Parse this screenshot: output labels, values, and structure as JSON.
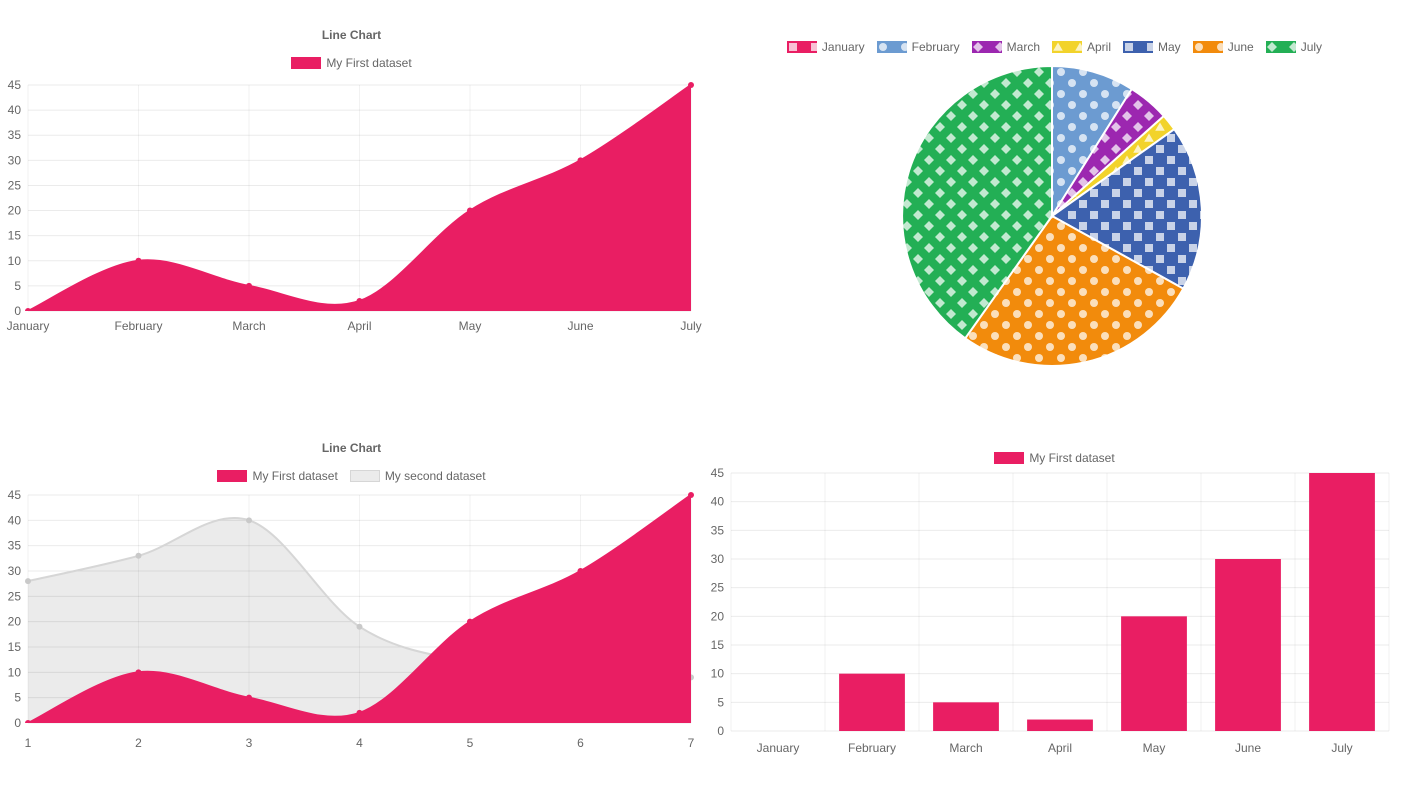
{
  "theme": {
    "background": "#ffffff",
    "text_color": "#666666",
    "grid_color_h": "rgba(0,0,0,0.08)",
    "grid_color_v": "rgba(0,0,0,0.05)",
    "accent_pink": "#E91E63"
  },
  "chart_data": [
    {
      "type": "line",
      "title": "Line Chart",
      "legend_position": "top",
      "grid": true,
      "categories": [
        "January",
        "February",
        "March",
        "April",
        "May",
        "June",
        "July"
      ],
      "series": [
        {
          "name": "My First dataset",
          "values": [
            0,
            10,
            5,
            2,
            20,
            30,
            45
          ],
          "color": "#E91E63",
          "fill_color": "#E91E63",
          "point_color": "#E91E63",
          "swatch": "#E91E63"
        }
      ],
      "ylim": [
        0,
        45
      ],
      "ytick_step": 5,
      "xlabel": "",
      "ylabel": ""
    },
    {
      "type": "pie",
      "legend_position": "top",
      "categories": [
        "January",
        "February",
        "March",
        "April",
        "May",
        "June",
        "July"
      ],
      "values": [
        0,
        10,
        5,
        2,
        20,
        30,
        45
      ],
      "colors": [
        "#E91E63",
        "#6C9BD1",
        "#9C27B0",
        "#F2D32B",
        "#3D61AE",
        "#F28B0C",
        "#23AF55"
      ],
      "patterns": [
        "square",
        "dot",
        "diamond",
        "triangle",
        "square",
        "dot",
        "diamond"
      ],
      "pattern_overlay": "rgba(255,255,255,0.72)"
    },
    {
      "type": "line",
      "title": "Line Chart",
      "legend_position": "top",
      "grid": true,
      "categories": [
        "1",
        "2",
        "3",
        "4",
        "5",
        "6",
        "7"
      ],
      "series": [
        {
          "name": "My First dataset",
          "values": [
            0,
            10,
            5,
            2,
            20,
            30,
            45
          ],
          "color": "#E91E63",
          "fill_color": "#E91E63",
          "point_color": "#E91E63",
          "swatch": "#E91E63"
        },
        {
          "name": "My second dataset",
          "values": [
            28,
            33,
            40,
            19,
            12,
            10,
            9
          ],
          "color": "#D6D6D6",
          "fill_color": "rgba(0,0,0,0.08)",
          "point_color": "#C9C9C9",
          "swatch": "#EBEBEB",
          "swatch_border": "#D6D6D6"
        }
      ],
      "ylim": [
        0,
        45
      ],
      "ytick_step": 5
    },
    {
      "type": "bar",
      "legend_position": "top",
      "grid": true,
      "categories": [
        "January",
        "February",
        "March",
        "April",
        "May",
        "June",
        "July"
      ],
      "series": [
        {
          "name": "My First dataset",
          "values": [
            0,
            10,
            5,
            2,
            20,
            30,
            45
          ],
          "color": "#E91E63",
          "swatch": "#E91E63"
        }
      ],
      "ylim": [
        0,
        45
      ],
      "ytick_step": 5,
      "bar_ratio": 0.7
    }
  ]
}
